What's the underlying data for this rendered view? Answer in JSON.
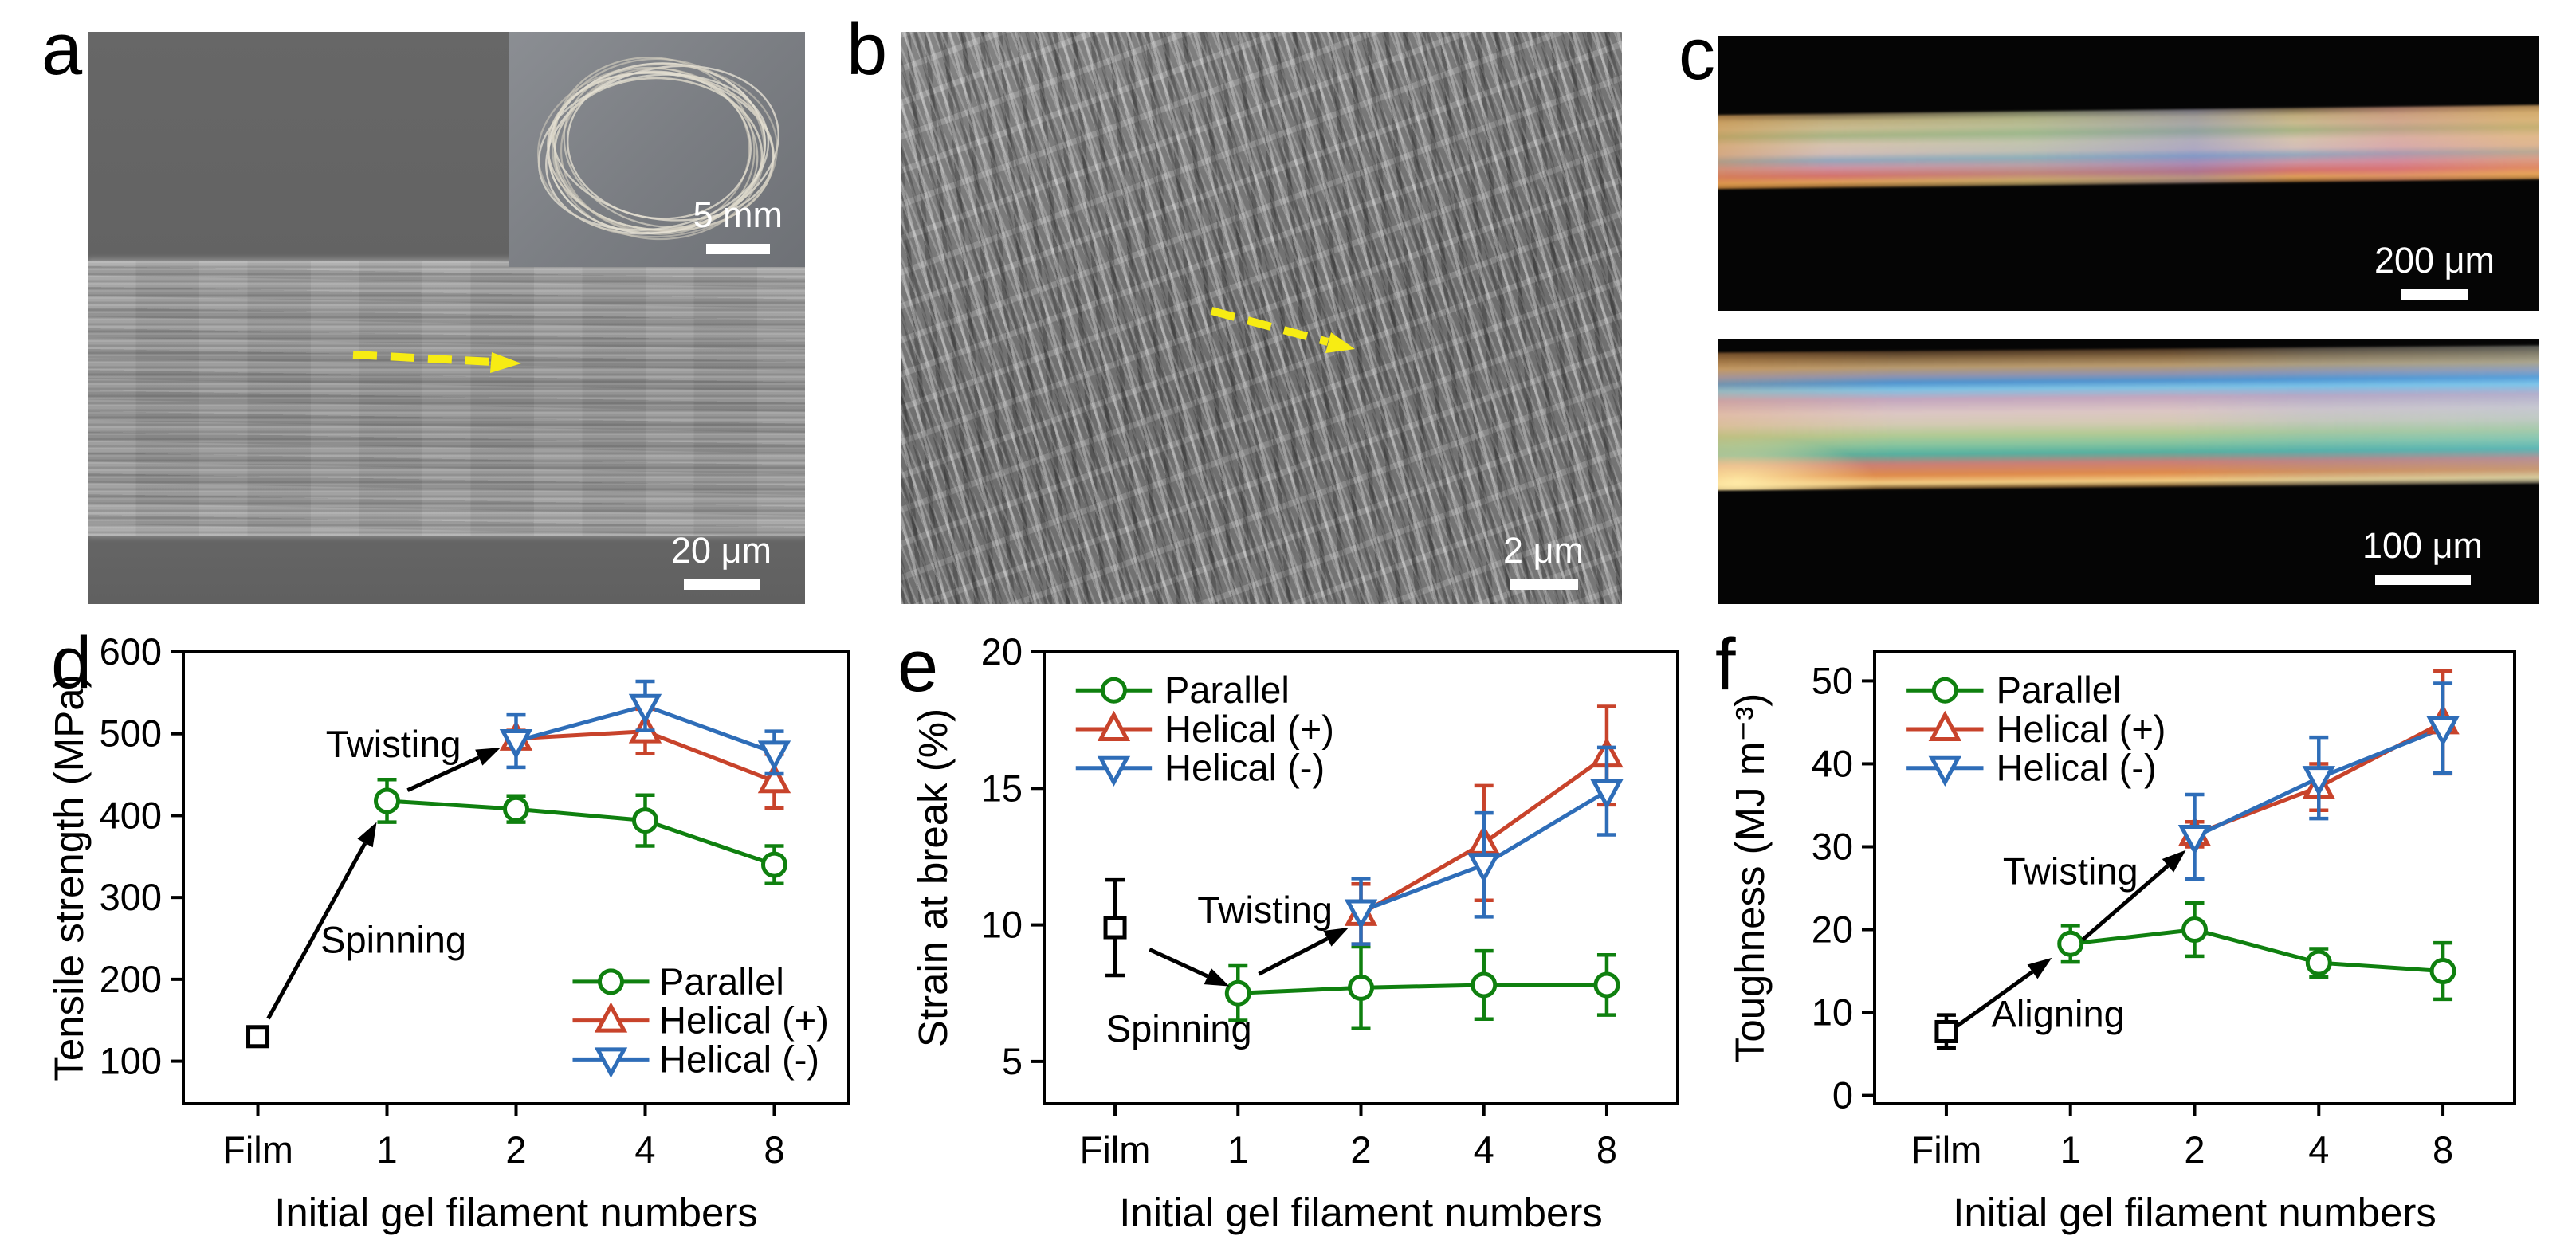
{
  "figure": {
    "panels": {
      "a": {
        "label": "a",
        "description": "SEM image of regenerated silk fiber surface",
        "scale_text": "20 μm",
        "inset_scale_text": "5 mm",
        "arrow_color": "#f7ec13"
      },
      "b": {
        "label": "b",
        "description": "SEM image of aligned nanofibrils",
        "scale_text": "2 μm",
        "arrow_color": "#f7ec13"
      },
      "c": {
        "label": "c",
        "description": "Polarized optical microscopy images of birefringent fiber",
        "scale_text_top": "200 μm",
        "scale_text_bottom": "100 μm"
      },
      "d": {
        "label": "d"
      },
      "e": {
        "label": "e"
      },
      "f": {
        "label": "f"
      }
    }
  },
  "chart_data": [
    {
      "panel": "d",
      "type": "line",
      "title": "",
      "xlabel": "Initial gel filament numbers",
      "ylabel": "Tensile strength (MPa)",
      "categories": [
        "Film",
        "1",
        "2",
        "4",
        "8"
      ],
      "ylim": [
        48,
        600
      ],
      "yticks": [
        100,
        200,
        300,
        400,
        500,
        600
      ],
      "grid": false,
      "series": [
        {
          "name": "Film",
          "marker": "square",
          "color": "#000000",
          "in_legend": false,
          "values": [
            130,
            null,
            null,
            null,
            null
          ],
          "errors": [
            8,
            null,
            null,
            null,
            null
          ]
        },
        {
          "name": "Parallel",
          "marker": "circle",
          "color": "#0f800f",
          "in_legend": true,
          "values": [
            null,
            418,
            408,
            394,
            340
          ],
          "errors": [
            null,
            26,
            16,
            31,
            23
          ]
        },
        {
          "name": "Helical (+)",
          "marker": "triangle-up",
          "color": "#c8432b",
          "in_legend": true,
          "values": [
            null,
            null,
            494,
            503,
            442
          ],
          "errors": [
            null,
            null,
            10,
            27,
            33
          ]
        },
        {
          "name": "Helical (-)",
          "marker": "triangle-down",
          "color": "#2e6db8",
          "in_legend": true,
          "values": [
            null,
            null,
            491,
            534,
            477
          ],
          "errors": [
            null,
            null,
            32,
            30,
            26
          ]
        }
      ],
      "legend": {
        "position": "bottom-right",
        "entries": [
          "Parallel",
          "Helical (+)",
          "Helical (-)"
        ]
      },
      "annotations": [
        {
          "text": "Twisting",
          "x": 1.05,
          "y": 487,
          "arrow": {
            "x1": 1.16,
            "y1": 431,
            "x2": 1.88,
            "y2": 483
          }
        },
        {
          "text": "Spinning",
          "x": 1.05,
          "y": 248,
          "arrow": {
            "x1": 0.08,
            "y1": 152,
            "x2": 0.92,
            "y2": 392
          }
        }
      ]
    },
    {
      "panel": "e",
      "type": "line",
      "title": "",
      "xlabel": "Initial gel filament numbers",
      "ylabel": "Strain at break (%)",
      "categories": [
        "Film",
        "1",
        "2",
        "4",
        "8"
      ],
      "ylim": [
        3.45,
        20
      ],
      "yticks": [
        5,
        10,
        15,
        20
      ],
      "grid": false,
      "series": [
        {
          "name": "Film",
          "marker": "square",
          "color": "#000000",
          "in_legend": false,
          "values": [
            9.9,
            null,
            null,
            null,
            null
          ],
          "errors": [
            1.75,
            null,
            null,
            null,
            null
          ]
        },
        {
          "name": "Parallel",
          "marker": "circle",
          "color": "#0f800f",
          "in_legend": true,
          "values": [
            null,
            7.5,
            7.7,
            7.8,
            7.8
          ],
          "errors": [
            null,
            1.0,
            1.5,
            1.25,
            1.1
          ]
        },
        {
          "name": "Helical (+)",
          "marker": "triangle-up",
          "color": "#c8432b",
          "in_legend": true,
          "values": [
            null,
            null,
            10.4,
            13.0,
            16.2
          ],
          "errors": [
            null,
            null,
            1.1,
            2.1,
            1.8
          ]
        },
        {
          "name": "Helical (-)",
          "marker": "triangle-down",
          "color": "#2e6db8",
          "in_legend": true,
          "values": [
            null,
            null,
            10.5,
            12.2,
            14.9
          ],
          "errors": [
            null,
            null,
            1.2,
            1.9,
            1.6
          ]
        }
      ],
      "legend": {
        "position": "top-left",
        "entries": [
          "Parallel",
          "Helical (+)",
          "Helical (-)"
        ]
      },
      "annotations": [
        {
          "text": "Twisting",
          "x": 1.22,
          "y": 10.55,
          "arrow": {
            "x1": 1.17,
            "y1": 8.2,
            "x2": 1.9,
            "y2": 9.9
          }
        },
        {
          "text": "Spinning",
          "x": 0.52,
          "y": 6.2,
          "arrow": {
            "x1": 0.28,
            "y1": 9.1,
            "x2": 0.93,
            "y2": 7.75
          }
        }
      ]
    },
    {
      "panel": "f",
      "type": "line",
      "title": "",
      "xlabel": "Initial gel filament numbers",
      "ylabel": "Toughness (MJ m⁻³)",
      "categories": [
        "Film",
        "1",
        "2",
        "4",
        "8"
      ],
      "ylim": [
        -1,
        53.5
      ],
      "yticks": [
        0,
        10,
        20,
        30,
        40,
        50
      ],
      "grid": false,
      "series": [
        {
          "name": "Film",
          "marker": "square",
          "color": "#000000",
          "in_legend": false,
          "values": [
            7.7,
            null,
            null,
            null,
            null
          ],
          "errors": [
            2.0,
            null,
            null,
            null,
            null
          ]
        },
        {
          "name": "Parallel",
          "marker": "circle",
          "color": "#0f800f",
          "in_legend": true,
          "values": [
            null,
            18.3,
            20.0,
            16.0,
            15.0
          ],
          "errors": [
            null,
            2.2,
            3.2,
            1.7,
            3.4
          ]
        },
        {
          "name": "Helical (+)",
          "marker": "triangle-up",
          "color": "#c8432b",
          "in_legend": true,
          "values": [
            null,
            null,
            31.5,
            37.2,
            45.0
          ],
          "errors": [
            null,
            null,
            1.5,
            2.8,
            6.2
          ]
        },
        {
          "name": "Helical (-)",
          "marker": "triangle-down",
          "color": "#2e6db8",
          "in_legend": true,
          "values": [
            null,
            null,
            31.2,
            38.3,
            44.3
          ],
          "errors": [
            null,
            null,
            5.1,
            4.9,
            5.4
          ]
        }
      ],
      "legend": {
        "position": "top-left",
        "entries": [
          "Parallel",
          "Helical (+)",
          "Helical (-)"
        ]
      },
      "annotations": [
        {
          "text": "Twisting",
          "x": 1.0,
          "y": 27.0,
          "arrow": {
            "x1": 1.1,
            "y1": 18.8,
            "x2": 1.93,
            "y2": 29.6
          }
        },
        {
          "text": "Aligning",
          "x": 0.9,
          "y": 9.8,
          "arrow": {
            "x1": 0.09,
            "y1": 8.4,
            "x2": 0.85,
            "y2": 16.6
          }
        }
      ]
    }
  ]
}
